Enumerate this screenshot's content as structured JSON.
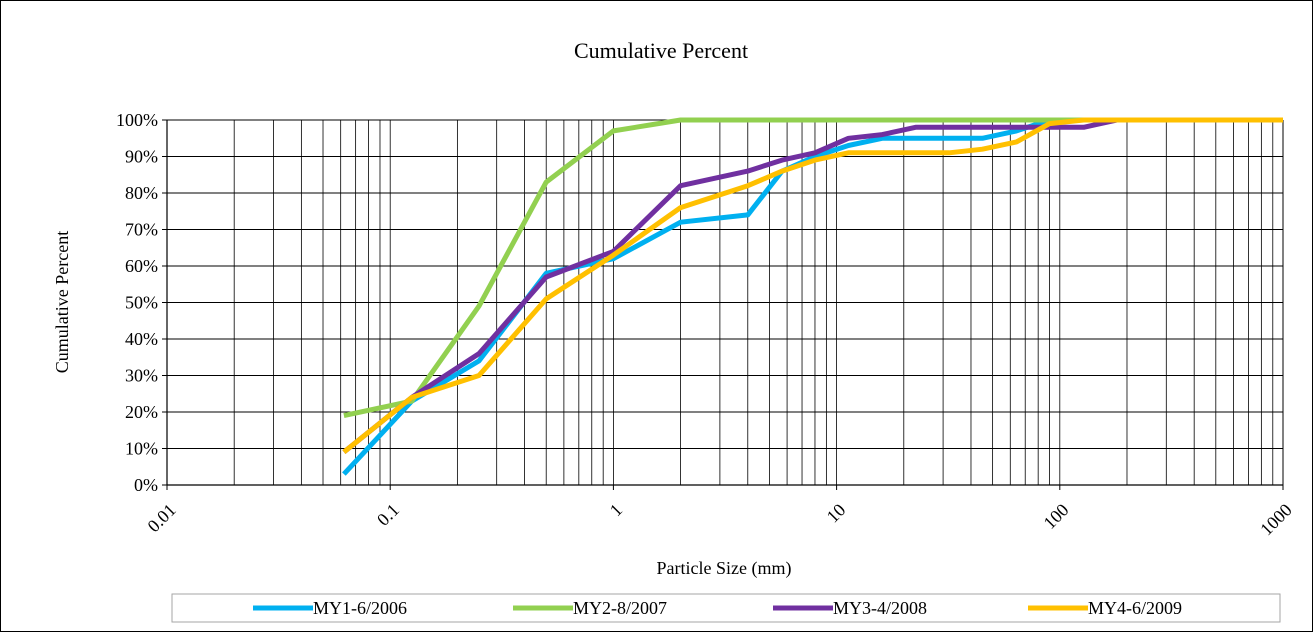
{
  "chart_data": {
    "type": "line",
    "title": "Cumulative Percent",
    "xlabel": "Particle Size (mm)",
    "ylabel": "Cumulative Percent",
    "x_scale": "log",
    "xlim": [
      0.01,
      1000
    ],
    "ylim": [
      0,
      100
    ],
    "x_ticks": [
      0.01,
      0.1,
      1,
      10,
      100,
      1000
    ],
    "x_tick_labels": [
      "0.01",
      "0.1",
      "1",
      "10",
      "100",
      "1000"
    ],
    "y_ticks": [
      0,
      10,
      20,
      30,
      40,
      50,
      60,
      70,
      80,
      90,
      100
    ],
    "y_tick_labels": [
      "0%",
      "10%",
      "20%",
      "30%",
      "40%",
      "50%",
      "60%",
      "70%",
      "80%",
      "90%",
      "100%"
    ],
    "grid": true,
    "legend_position": "bottom",
    "series": [
      {
        "name": "MY1-6/2006",
        "color": "#00B0F0",
        "x": [
          0.062,
          0.125,
          0.25,
          0.5,
          1,
          2,
          4,
          5.7,
          8,
          11.3,
          16,
          22.6,
          32,
          45,
          64,
          90,
          128,
          180,
          256,
          362,
          512,
          1024
        ],
        "y": [
          3,
          23,
          34,
          58,
          62,
          72,
          74,
          86,
          90,
          93,
          95,
          95,
          95,
          95,
          97,
          100,
          100,
          100,
          100,
          100,
          100,
          100
        ]
      },
      {
        "name": "MY2-8/2007",
        "color": "#92D050",
        "x": [
          0.062,
          0.125,
          0.25,
          0.5,
          1,
          2,
          4,
          8,
          16,
          32,
          64,
          128,
          256,
          512,
          1024
        ],
        "y": [
          19,
          23,
          49,
          83,
          97,
          100,
          100,
          100,
          100,
          100,
          100,
          100,
          100,
          100,
          100
        ]
      },
      {
        "name": "MY3-4/2008",
        "color": "#7030A0",
        "x": [
          0.062,
          0.125,
          0.25,
          0.5,
          1,
          2,
          4,
          5.7,
          8,
          11.3,
          16,
          22.6,
          32,
          45,
          64,
          90,
          128,
          180,
          256,
          512,
          1024
        ],
        "y": [
          9,
          24,
          36,
          57,
          64,
          82,
          86,
          89,
          91,
          95,
          96,
          98,
          98,
          98,
          98,
          98,
          98,
          100,
          100,
          100,
          100
        ]
      },
      {
        "name": "MY4-6/2009",
        "color": "#FFC000",
        "x": [
          0.062,
          0.125,
          0.25,
          0.5,
          1,
          2,
          4,
          5.7,
          8,
          11.3,
          16,
          22.6,
          32,
          45,
          64,
          90,
          128,
          180,
          256,
          512,
          1024
        ],
        "y": [
          9,
          24,
          30,
          51,
          63,
          76,
          82,
          86,
          89,
          91,
          91,
          91,
          91,
          92,
          94,
          99,
          100,
          100,
          100,
          100,
          100
        ]
      }
    ]
  }
}
